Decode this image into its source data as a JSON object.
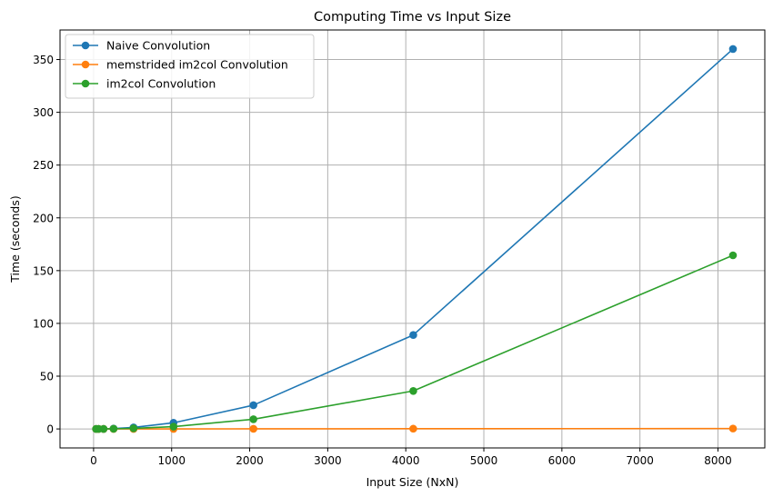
{
  "chart_data": {
    "type": "line",
    "title": "Computing Time vs Input Size",
    "xlabel": "Input Size (NxN)",
    "ylabel": "Time (seconds)",
    "xlim": [
      -430,
      8600
    ],
    "ylim": [
      -18,
      378
    ],
    "xticks": [
      0,
      1000,
      2000,
      3000,
      4000,
      5000,
      6000,
      7000,
      8000
    ],
    "yticks": [
      0,
      50,
      100,
      150,
      200,
      250,
      300,
      350
    ],
    "grid": true,
    "legend_position": "top-left",
    "x": [
      32,
      64,
      128,
      256,
      512,
      1024,
      2048,
      4096,
      8192
    ],
    "series": [
      {
        "name": "Naive Convolution",
        "color": "#1f77b4",
        "values": [
          0.0,
          0.01,
          0.05,
          0.35,
          1.4,
          5.8,
          22.5,
          89.0,
          360.0
        ]
      },
      {
        "name": "memstrided im2col Convolution",
        "color": "#ff7f0e",
        "values": [
          0.0,
          0.0,
          0.0,
          0.0,
          0.01,
          0.03,
          0.1,
          0.2,
          0.4
        ]
      },
      {
        "name": "im2col Convolution",
        "color": "#2ca02c",
        "values": [
          0.0,
          0.01,
          0.03,
          0.15,
          0.55,
          2.2,
          9.2,
          36.0,
          164.5
        ]
      }
    ]
  }
}
